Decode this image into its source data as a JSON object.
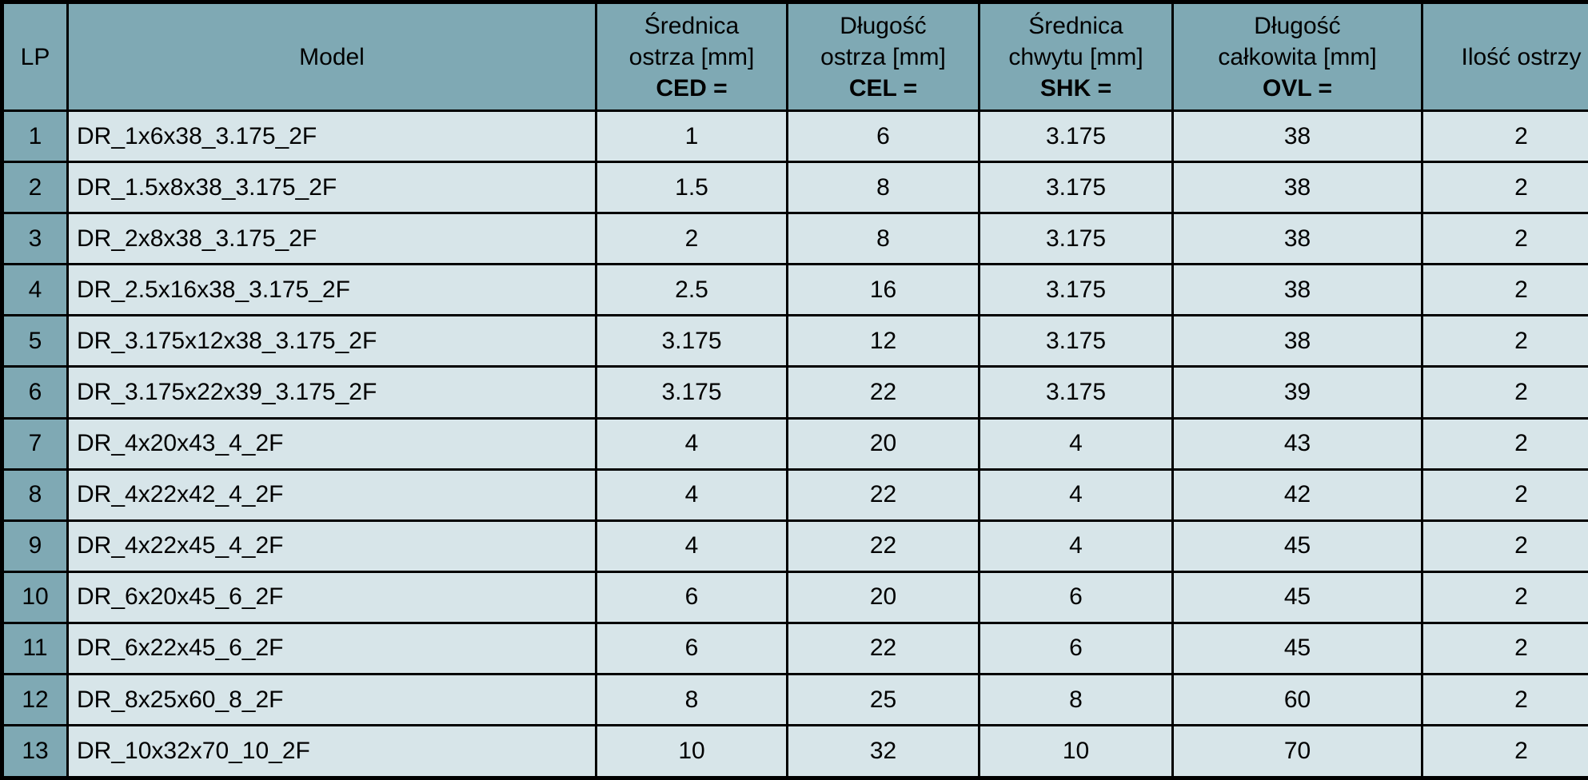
{
  "colors": {
    "header_bg": "#7fa9b4",
    "cell_bg": "#d7e5e9",
    "border": "#000000"
  },
  "table": {
    "columns": [
      {
        "id": "lp",
        "lines": [
          "LP"
        ]
      },
      {
        "id": "model",
        "lines": [
          "Model"
        ]
      },
      {
        "id": "ced",
        "lines": [
          "Średnica",
          "ostrza [mm]"
        ],
        "code": "CED ="
      },
      {
        "id": "cel",
        "lines": [
          "Długość",
          "ostrza [mm]"
        ],
        "code": "CEL ="
      },
      {
        "id": "shk",
        "lines": [
          "Średnica",
          "chwytu [mm]"
        ],
        "code": "SHK ="
      },
      {
        "id": "ovl",
        "lines": [
          "Długość",
          "całkowita [mm]"
        ],
        "code": "OVL ="
      },
      {
        "id": "blades",
        "lines": [
          "Ilość ostrzy"
        ]
      }
    ],
    "rows": [
      {
        "lp": "1",
        "model": "DR_1x6x38_3.175_2F",
        "ced": "1",
        "cel": "6",
        "shk": "3.175",
        "ovl": "38",
        "blades": "2"
      },
      {
        "lp": "2",
        "model": "DR_1.5x8x38_3.175_2F",
        "ced": "1.5",
        "cel": "8",
        "shk": "3.175",
        "ovl": "38",
        "blades": "2"
      },
      {
        "lp": "3",
        "model": "DR_2x8x38_3.175_2F",
        "ced": "2",
        "cel": "8",
        "shk": "3.175",
        "ovl": "38",
        "blades": "2"
      },
      {
        "lp": "4",
        "model": "DR_2.5x16x38_3.175_2F",
        "ced": "2.5",
        "cel": "16",
        "shk": "3.175",
        "ovl": "38",
        "blades": "2"
      },
      {
        "lp": "5",
        "model": "DR_3.175x12x38_3.175_2F",
        "ced": "3.175",
        "cel": "12",
        "shk": "3.175",
        "ovl": "38",
        "blades": "2"
      },
      {
        "lp": "6",
        "model": "DR_3.175x22x39_3.175_2F",
        "ced": "3.175",
        "cel": "22",
        "shk": "3.175",
        "ovl": "39",
        "blades": "2"
      },
      {
        "lp": "7",
        "model": "DR_4x20x43_4_2F",
        "ced": "4",
        "cel": "20",
        "shk": "4",
        "ovl": "43",
        "blades": "2"
      },
      {
        "lp": "8",
        "model": "DR_4x22x42_4_2F",
        "ced": "4",
        "cel": "22",
        "shk": "4",
        "ovl": "42",
        "blades": "2"
      },
      {
        "lp": "9",
        "model": "DR_4x22x45_4_2F",
        "ced": "4",
        "cel": "22",
        "shk": "4",
        "ovl": "45",
        "blades": "2"
      },
      {
        "lp": "10",
        "model": "DR_6x20x45_6_2F",
        "ced": "6",
        "cel": "20",
        "shk": "6",
        "ovl": "45",
        "blades": "2"
      },
      {
        "lp": "11",
        "model": "DR_6x22x45_6_2F",
        "ced": "6",
        "cel": "22",
        "shk": "6",
        "ovl": "45",
        "blades": "2"
      },
      {
        "lp": "12",
        "model": "DR_8x25x60_8_2F",
        "ced": "8",
        "cel": "25",
        "shk": "8",
        "ovl": "60",
        "blades": "2"
      },
      {
        "lp": "13",
        "model": "DR_10x32x70_10_2F",
        "ced": "10",
        "cel": "32",
        "shk": "10",
        "ovl": "70",
        "blades": "2"
      }
    ]
  }
}
